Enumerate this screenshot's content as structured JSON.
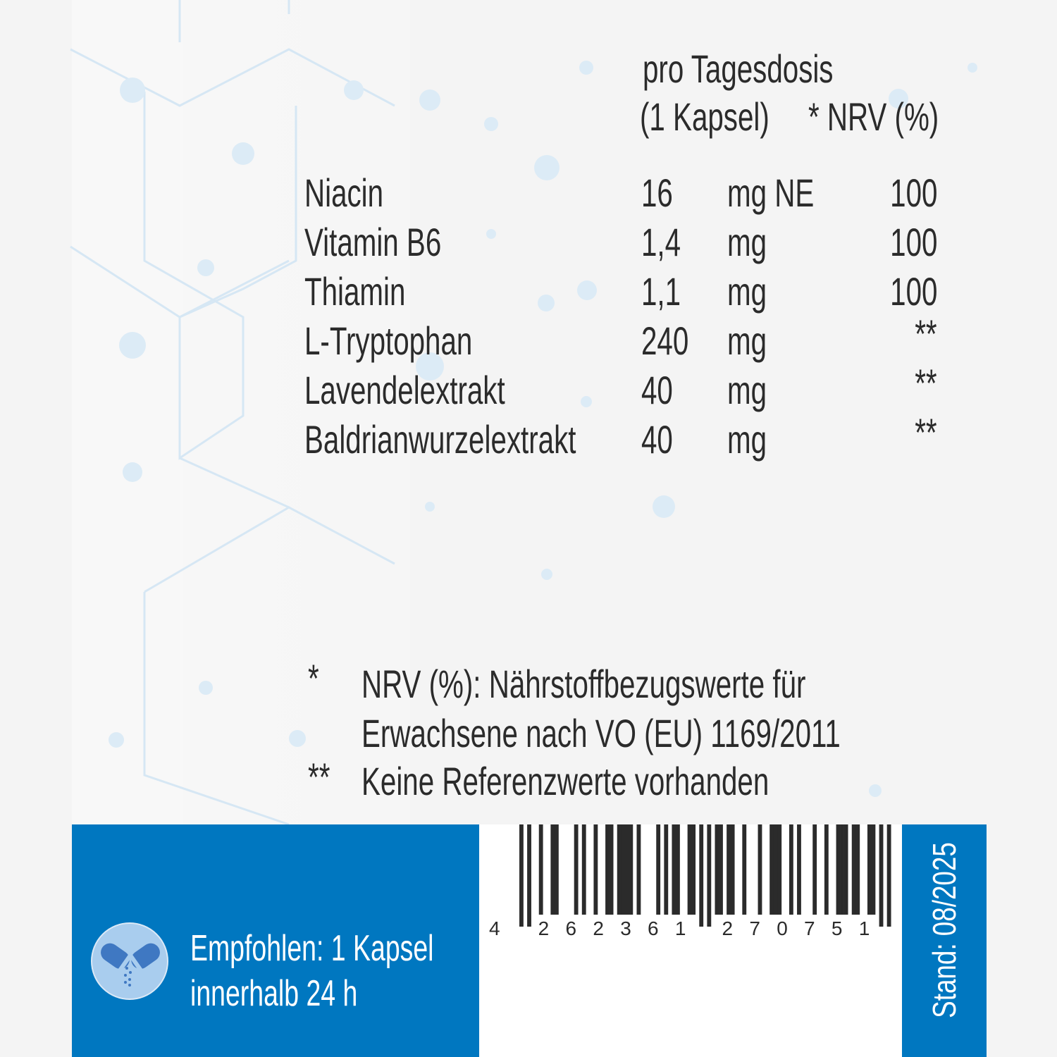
{
  "header": {
    "per_dose_line1": "pro Tagesdosis",
    "per_dose_line2": "(1 Kapsel)",
    "nrv_header": "* NRV (%)"
  },
  "nutrients": [
    {
      "name": "Niacin",
      "amount": "16",
      "unit": "mg NE",
      "nrv": "100"
    },
    {
      "name": "Vitamin B6",
      "amount": "1,4",
      "unit": "mg",
      "nrv": "100"
    },
    {
      "name": "Thiamin",
      "amount": "1,1",
      "unit": "mg",
      "nrv": "100"
    },
    {
      "name": "L-Tryptophan",
      "amount": "240",
      "unit": "mg",
      "nrv": "**"
    },
    {
      "name": "Lavendelextrakt",
      "amount": "40",
      "unit": "mg",
      "nrv": "**"
    },
    {
      "name": "Baldrianwurzelextrakt",
      "amount": "40",
      "unit": "mg",
      "nrv": "**"
    }
  ],
  "footnotes": {
    "f1_marker": "*",
    "f1_line1": "NRV (%): Nährstoffbezugswerte für",
    "f1_line2": "Erwachsene nach VO (EU) 1169/2011",
    "f2_marker": "**",
    "f2_text": "Keine Referenzwerte vorhanden"
  },
  "dosage": {
    "icon": "capsule-icon",
    "line1": "Empfohlen: 1 Kapsel",
    "line2": "innerhalb 24 h"
  },
  "barcode": {
    "digits": "4262361270751"
  },
  "stand": "Stand: 08/2025",
  "colors": {
    "brand_blue": "#0077c0",
    "icon_circle": "#a9cdee",
    "icon_capsule": "#3f78c2"
  }
}
